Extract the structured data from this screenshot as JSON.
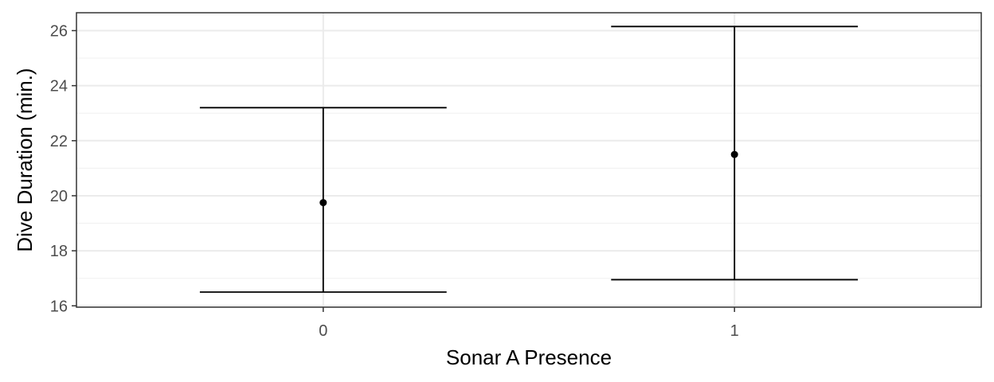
{
  "chart_data": {
    "type": "errorbar",
    "xlabel": "Sonar A Presence",
    "ylabel": "Dive Duration (min.)",
    "categories": [
      "0",
      "1"
    ],
    "series": [
      {
        "points": [
          {
            "x": "0",
            "mean": 19.75,
            "lower": 16.5,
            "upper": 23.2
          },
          {
            "x": "1",
            "mean": 21.5,
            "lower": 16.95,
            "upper": 26.15
          }
        ]
      }
    ],
    "ylim": [
      15.95,
      26.65
    ],
    "yticks": [
      16,
      18,
      20,
      22,
      24,
      26
    ],
    "grid": true,
    "legend": "none",
    "theme": "bw"
  }
}
